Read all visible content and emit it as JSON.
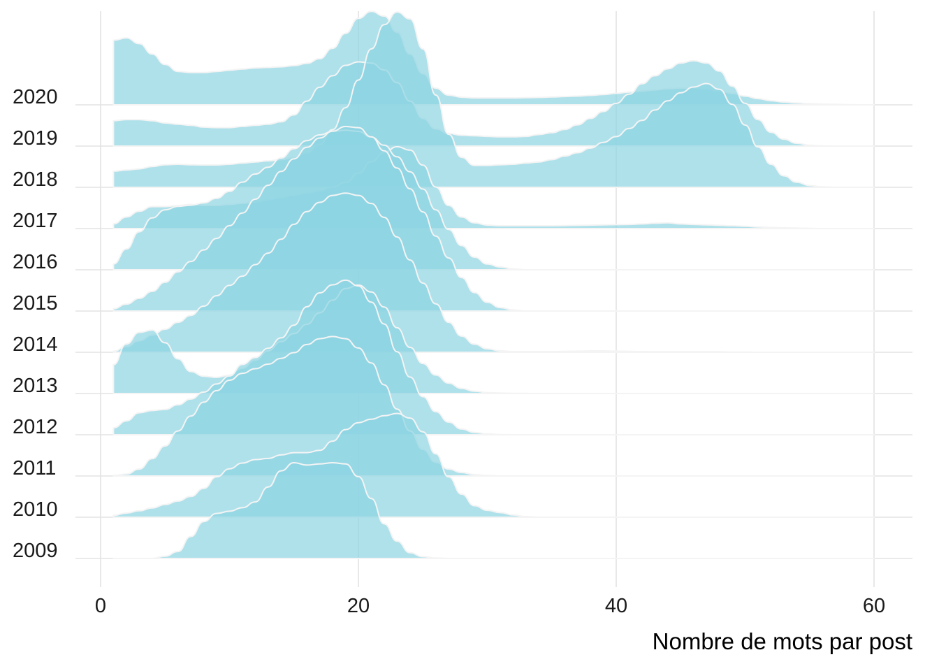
{
  "chart_data": {
    "type": "area",
    "subtype": "ridgeline",
    "title": "",
    "xlabel": "Nombre de mots par post",
    "ylabel": "",
    "xlim": [
      0,
      63
    ],
    "x_ticks": [
      0,
      20,
      40,
      60
    ],
    "x_tick_labels": [
      "0",
      "20",
      "40",
      "60"
    ],
    "categories": [
      "2009",
      "2010",
      "2011",
      "2012",
      "2013",
      "2014",
      "2015",
      "2016",
      "2017",
      "2018",
      "2019",
      "2020"
    ],
    "fill_color": "#8dd4e2",
    "fill_opacity": 0.7,
    "outline_color": "#f4f4f4",
    "grid": true,
    "legend": "none",
    "x": [
      1,
      2,
      3,
      4,
      5,
      6,
      7,
      8,
      9,
      10,
      11,
      12,
      13,
      14,
      15,
      16,
      17,
      18,
      19,
      20,
      21,
      22,
      23,
      24,
      25,
      26,
      27,
      28,
      29,
      30,
      31,
      32,
      33,
      34,
      35,
      36,
      37,
      38,
      39,
      40,
      41,
      42,
      43,
      44,
      45,
      46,
      47,
      48,
      49,
      50,
      51,
      52,
      53,
      54,
      55,
      56,
      57,
      58,
      59,
      60
    ],
    "series": [
      {
        "name": "2009",
        "values": [
          0,
          0,
          0,
          0,
          0.1,
          0.3,
          0.95,
          1.6,
          1.95,
          2.05,
          2.2,
          2.45,
          3.1,
          3.8,
          4.15,
          4.05,
          4.1,
          4.15,
          4.1,
          3.55,
          2.6,
          1.5,
          0.75,
          0.25,
          0.08,
          0.02,
          0,
          0,
          0,
          0,
          0,
          0,
          0,
          0,
          0,
          0,
          0,
          0,
          0,
          0,
          0,
          0,
          0,
          0,
          0,
          0,
          0,
          0,
          0,
          0,
          0,
          0,
          0,
          0,
          0,
          0,
          0,
          0,
          0,
          0
        ]
      },
      {
        "name": "2010",
        "values": [
          0.08,
          0.18,
          0.28,
          0.4,
          0.55,
          0.7,
          0.9,
          1.25,
          1.75,
          2.1,
          2.35,
          2.5,
          2.55,
          2.7,
          2.8,
          2.8,
          2.9,
          3.3,
          3.8,
          4.1,
          4.25,
          4.4,
          4.5,
          4.3,
          3.7,
          2.75,
          1.75,
          1.0,
          0.5,
          0.3,
          0.2,
          0.1,
          0.03,
          0,
          0,
          0,
          0,
          0,
          0,
          0,
          0,
          0,
          0,
          0,
          0,
          0,
          0,
          0,
          0,
          0,
          0,
          0,
          0,
          0,
          0,
          0,
          0,
          0,
          0,
          0
        ]
      },
      {
        "name": "2011",
        "values": [
          0.02,
          0.08,
          0.3,
          0.75,
          1.3,
          1.95,
          2.6,
          3.2,
          3.7,
          4.15,
          4.45,
          4.65,
          4.85,
          5.1,
          5.35,
          5.7,
          5.95,
          6.05,
          5.95,
          5.55,
          4.9,
          3.95,
          2.9,
          1.95,
          1.15,
          0.6,
          0.3,
          0.15,
          0.06,
          0.02,
          0,
          0,
          0,
          0,
          0,
          0,
          0,
          0,
          0,
          0,
          0,
          0,
          0,
          0,
          0,
          0,
          0,
          0,
          0,
          0,
          0,
          0,
          0,
          0,
          0,
          0,
          0,
          0,
          0,
          0
        ]
      },
      {
        "name": "2012",
        "values": [
          0.3,
          0.6,
          0.95,
          1.05,
          1.1,
          1.3,
          1.55,
          1.85,
          2.2,
          2.55,
          3.05,
          3.35,
          3.75,
          4.2,
          4.75,
          5.55,
          6.15,
          6.5,
          6.7,
          6.45,
          5.75,
          4.8,
          3.6,
          2.5,
          1.65,
          1.0,
          0.55,
          0.25,
          0.1,
          0.04,
          0.01,
          0,
          0,
          0,
          0,
          0,
          0,
          0,
          0,
          0,
          0,
          0,
          0,
          0,
          0,
          0,
          0,
          0,
          0,
          0,
          0,
          0,
          0,
          0,
          0,
          0,
          0,
          0,
          0,
          0
        ]
      },
      {
        "name": "2013",
        "values": [
          1.25,
          2.15,
          2.65,
          2.75,
          2.2,
          1.5,
          0.95,
          0.75,
          0.7,
          0.8,
          1.1,
          1.45,
          1.85,
          2.25,
          2.6,
          3.0,
          3.5,
          4.05,
          4.55,
          4.7,
          4.4,
          3.75,
          2.85,
          2.0,
          1.3,
          0.8,
          0.45,
          0.22,
          0.1,
          0.04,
          0.02,
          0.01,
          0.01,
          0,
          0,
          0,
          0,
          0,
          0,
          0,
          0,
          0,
          0,
          0,
          0,
          0,
          0,
          0,
          0,
          0,
          0,
          0,
          0,
          0,
          0,
          0,
          0,
          0,
          0,
          0
        ]
      },
      {
        "name": "2014",
        "values": [
          0.05,
          0.25,
          0.5,
          0.75,
          1.0,
          1.3,
          1.6,
          2.0,
          2.45,
          2.9,
          3.3,
          3.8,
          4.3,
          4.9,
          5.55,
          6.1,
          6.5,
          6.8,
          6.9,
          6.8,
          6.45,
          5.85,
          5.0,
          4.0,
          3.0,
          2.1,
          1.3,
          0.7,
          0.35,
          0.15,
          0.06,
          0.03,
          0.03,
          0.03,
          0.03,
          0.04,
          0.05,
          0.06,
          0.06,
          0.05,
          0.04,
          0.03,
          0.02,
          0.02,
          0.02,
          0.02,
          0.02,
          0.02,
          0.01,
          0.01,
          0,
          0,
          0,
          0,
          0,
          0,
          0,
          0,
          0,
          0
        ]
      },
      {
        "name": "2015",
        "values": [
          0.1,
          0.3,
          0.55,
          0.85,
          1.25,
          1.7,
          2.15,
          2.65,
          3.15,
          3.7,
          4.25,
          4.85,
          5.45,
          6.05,
          6.6,
          7.1,
          7.5,
          7.8,
          8.0,
          7.95,
          7.55,
          6.95,
          6.2,
          5.3,
          4.3,
          3.25,
          2.3,
          1.45,
          0.8,
          0.38,
          0.15,
          0.05,
          0,
          0,
          0,
          0,
          0,
          0,
          0,
          0,
          0,
          0,
          0,
          0,
          0,
          0,
          0,
          0,
          0,
          0,
          0,
          0,
          0,
          0,
          0,
          0,
          0,
          0,
          0,
          0
        ]
      },
      {
        "name": "2016",
        "values": [
          0.25,
          0.9,
          1.65,
          2.25,
          2.6,
          2.75,
          2.8,
          2.9,
          3.1,
          3.4,
          3.8,
          4.15,
          4.45,
          4.85,
          5.25,
          5.6,
          5.85,
          6.0,
          6.05,
          6.0,
          5.75,
          5.4,
          4.9,
          4.25,
          3.5,
          2.6,
          1.75,
          1.05,
          0.55,
          0.25,
          0.12,
          0.04,
          0,
          0,
          0,
          0,
          0,
          0,
          0,
          0,
          0,
          0,
          0,
          0,
          0,
          0,
          0,
          0,
          0,
          0,
          0,
          0,
          0,
          0,
          0,
          0,
          0,
          0,
          0,
          0
        ]
      },
      {
        "name": "2017",
        "values": [
          0.2,
          0.5,
          0.75,
          0.95,
          0.95,
          1.0,
          1.05,
          1.0,
          1.0,
          1.05,
          1.1,
          1.15,
          1.25,
          1.35,
          1.45,
          1.55,
          1.65,
          1.8,
          2.0,
          2.4,
          2.9,
          3.3,
          3.55,
          3.4,
          2.75,
          1.8,
          1.0,
          0.5,
          0.25,
          0.15,
          0.12,
          0.12,
          0.12,
          0.12,
          0.12,
          0.13,
          0.14,
          0.15,
          0.16,
          0.17,
          0.18,
          0.2,
          0.23,
          0.25,
          0.2,
          0.18,
          0.16,
          0.14,
          0.12,
          0.1,
          0.07,
          0.05,
          0.03,
          0.02,
          0.01,
          0,
          0,
          0,
          0,
          0
        ]
      },
      {
        "name": "2018",
        "values": [
          0.7,
          0.75,
          0.8,
          0.9,
          0.98,
          1.0,
          0.98,
          0.97,
          0.97,
          1.0,
          1.05,
          1.1,
          1.15,
          1.2,
          1.3,
          1.5,
          1.85,
          2.5,
          3.45,
          4.65,
          6.0,
          7.05,
          7.6,
          7.3,
          6.0,
          4.0,
          2.3,
          1.3,
          0.95,
          0.95,
          0.98,
          1.0,
          1.05,
          1.1,
          1.2,
          1.35,
          1.5,
          1.7,
          1.95,
          2.2,
          2.55,
          2.9,
          3.35,
          3.75,
          4.1,
          4.35,
          4.5,
          4.25,
          3.6,
          2.7,
          1.75,
          1.0,
          0.5,
          0.22,
          0.08,
          0.02,
          0,
          0,
          0,
          0
        ]
      },
      {
        "name": "2019",
        "values": [
          1.1,
          1.15,
          1.15,
          1.1,
          1.0,
          0.95,
          0.9,
          0.82,
          0.8,
          0.8,
          0.85,
          0.9,
          0.95,
          1.05,
          1.35,
          1.95,
          2.55,
          3.05,
          3.5,
          3.65,
          3.6,
          3.3,
          2.75,
          1.95,
          1.2,
          0.75,
          0.55,
          0.47,
          0.45,
          0.42,
          0.4,
          0.4,
          0.42,
          0.5,
          0.58,
          0.72,
          0.92,
          1.2,
          1.5,
          1.85,
          2.25,
          2.7,
          3.05,
          3.35,
          3.6,
          3.7,
          3.6,
          3.25,
          2.6,
          1.85,
          1.15,
          0.6,
          0.3,
          0.12,
          0.04,
          0.01,
          0,
          0,
          0,
          0
        ]
      },
      {
        "name": "2020",
        "values": [
          2.8,
          2.9,
          2.65,
          2.2,
          1.75,
          1.45,
          1.4,
          1.4,
          1.45,
          1.5,
          1.55,
          1.6,
          1.62,
          1.65,
          1.7,
          1.8,
          2.0,
          2.45,
          3.1,
          3.75,
          4.05,
          3.85,
          3.15,
          2.2,
          1.35,
          0.72,
          0.42,
          0.33,
          0.3,
          0.3,
          0.3,
          0.3,
          0.31,
          0.32,
          0.34,
          0.36,
          0.38,
          0.41,
          0.45,
          0.5,
          0.55,
          0.6,
          0.65,
          0.7,
          0.73,
          0.72,
          0.68,
          0.6,
          0.5,
          0.38,
          0.27,
          0.18,
          0.12,
          0.08,
          0.05,
          0.03,
          0.02,
          0.01,
          0,
          0
        ]
      }
    ]
  }
}
